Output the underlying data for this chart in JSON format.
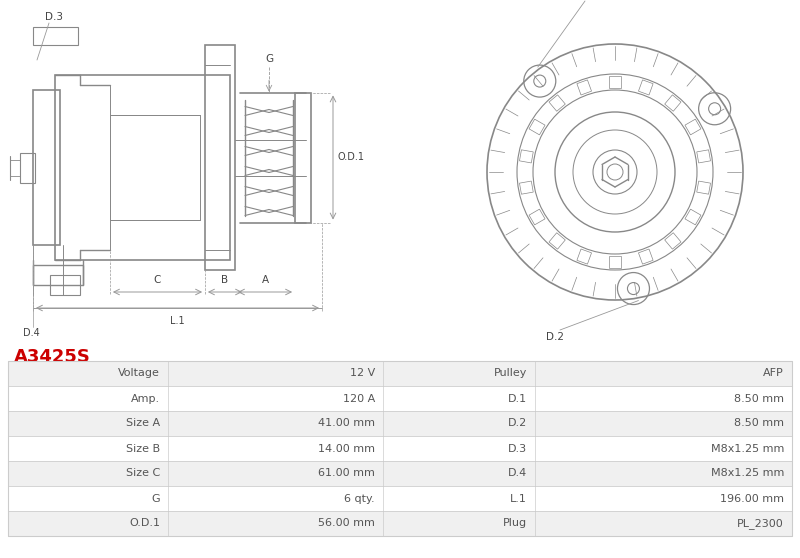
{
  "title": "A3425S",
  "title_color": "#cc0000",
  "bg_color": "#ffffff",
  "table_row_bg_even": "#f0f0f0",
  "table_row_bg_odd": "#ffffff",
  "table_border_color": "#cccccc",
  "table_text_color": "#555555",
  "rows": [
    [
      "Voltage",
      "12 V",
      "Pulley",
      "AFP"
    ],
    [
      "Amp.",
      "120 A",
      "D.1",
      "8.50 mm"
    ],
    [
      "Size A",
      "41.00 mm",
      "D.2",
      "8.50 mm"
    ],
    [
      "Size B",
      "14.00 mm",
      "D.3",
      "M8x1.25 mm"
    ],
    [
      "Size C",
      "61.00 mm",
      "D.4",
      "M8x1.25 mm"
    ],
    [
      "G",
      "6 qty.",
      "L.1",
      "196.00 mm"
    ],
    [
      "O.D.1",
      "56.00 mm",
      "Plug",
      "PL_2300"
    ]
  ],
  "lc": "#888888",
  "lc_dark": "#666666",
  "dim_color": "#999999",
  "label_color": "#444444"
}
